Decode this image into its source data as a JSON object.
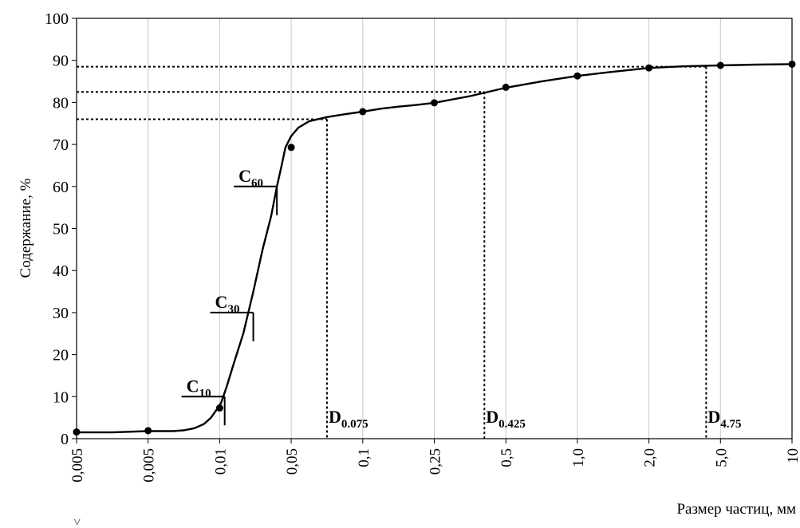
{
  "chart_data": {
    "type": "line",
    "xlabel": "Размер частиц, мм",
    "ylabel": "Содержание, %",
    "ylim": [
      0,
      100
    ],
    "y_ticks": [
      "0",
      "10",
      "20",
      "30",
      "40",
      "50",
      "60",
      "70",
      "80",
      "90",
      "100"
    ],
    "x_tick_labels": [
      "0,005",
      "0,005",
      "0,01",
      "0,05",
      "0,1",
      "0,25",
      "0,5",
      "1,0",
      "2,0",
      "5,0",
      "10"
    ],
    "grid": "vertical",
    "curve": [
      [
        0.0,
        1.5
      ],
      [
        0.5,
        1.5
      ],
      [
        1.0,
        1.8
      ],
      [
        1.35,
        1.8
      ],
      [
        1.5,
        2.0
      ],
      [
        1.65,
        2.5
      ],
      [
        1.78,
        3.5
      ],
      [
        1.88,
        5
      ],
      [
        1.97,
        7.2
      ],
      [
        2.02,
        8.5
      ],
      [
        2.1,
        12.5
      ],
      [
        2.2,
        18
      ],
      [
        2.33,
        25
      ],
      [
        2.47,
        35
      ],
      [
        2.6,
        45
      ],
      [
        2.72,
        53
      ],
      [
        2.8,
        60
      ],
      [
        2.86,
        64.5
      ],
      [
        2.92,
        69.3
      ],
      [
        3.0,
        72
      ],
      [
        3.1,
        74
      ],
      [
        3.25,
        75.5
      ],
      [
        3.5,
        76.5
      ],
      [
        3.75,
        77.2
      ],
      [
        4.0,
        77.8
      ],
      [
        4.25,
        78.5
      ],
      [
        4.5,
        79
      ],
      [
        4.75,
        79.4
      ],
      [
        5.0,
        79.9
      ],
      [
        5.5,
        81.5
      ],
      [
        6.0,
        83.5
      ],
      [
        6.5,
        85
      ],
      [
        7.0,
        86.3
      ],
      [
        7.5,
        87.3
      ],
      [
        8.0,
        88.2
      ],
      [
        8.5,
        88.6
      ],
      [
        9.0,
        88.8
      ],
      [
        9.5,
        89.0
      ],
      [
        10.0,
        89.1
      ]
    ],
    "points": [
      [
        0,
        1.6
      ],
      [
        1,
        1.9
      ],
      [
        2,
        7.3
      ],
      [
        3,
        69.3
      ],
      [
        4,
        77.8
      ],
      [
        5,
        79.9
      ],
      [
        6,
        83.6
      ],
      [
        7,
        86.3
      ],
      [
        8,
        88.2
      ],
      [
        9,
        88.8
      ],
      [
        10,
        89.1
      ]
    ],
    "c_markers": [
      {
        "label": "C",
        "sub": "10",
        "y": 10,
        "x": 2.07
      },
      {
        "label": "C",
        "sub": "30",
        "y": 30,
        "x": 2.47
      },
      {
        "label": "C",
        "sub": "60",
        "y": 60,
        "x": 2.8
      }
    ],
    "d_markers": [
      {
        "label": "D",
        "sub": "0.075",
        "x": 3.5,
        "y": 76
      },
      {
        "label": "D",
        "sub": "0.425",
        "x": 5.7,
        "y": 82.5
      },
      {
        "label": "D",
        "sub": "4.75",
        "x": 8.8,
        "y": 88.5
      }
    ],
    "corner_note": "<"
  }
}
